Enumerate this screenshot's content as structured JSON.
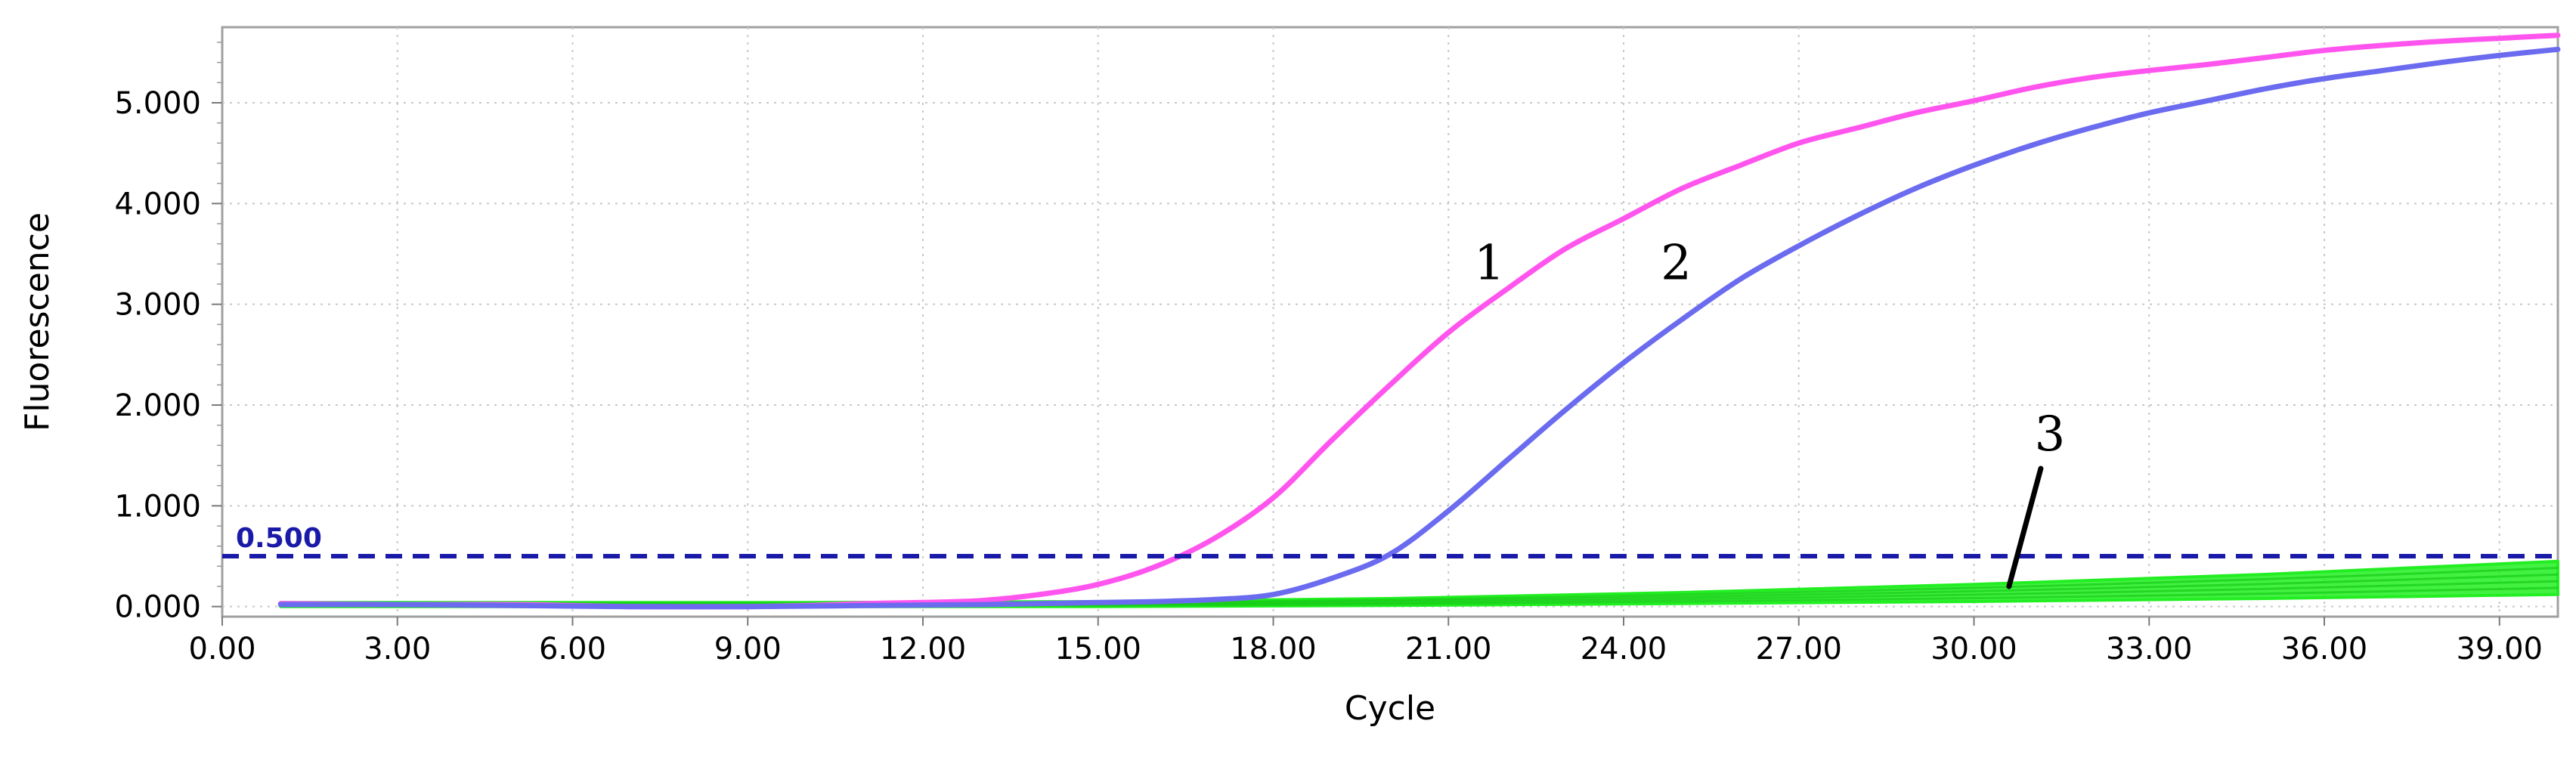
{
  "chart_data": {
    "type": "line",
    "xlabel": "Cycle",
    "ylabel": "Fluorescence",
    "xlim": [
      0,
      40
    ],
    "ylim": [
      -0.1,
      5.75
    ],
    "x_ticks": [
      "0.00",
      "3.00",
      "6.00",
      "9.00",
      "12.00",
      "15.00",
      "18.00",
      "21.00",
      "24.00",
      "27.00",
      "30.00",
      "33.00",
      "36.00",
      "39.00"
    ],
    "y_ticks": [
      "0.000",
      "1.000",
      "2.000",
      "3.000",
      "4.000",
      "5.000"
    ],
    "grid": true,
    "threshold": {
      "value": 0.5,
      "label": "0.500",
      "color": "#1a1aa8"
    },
    "series": [
      {
        "name": "1",
        "color": "#ff55ee",
        "x": [
          1,
          3,
          5,
          7,
          9,
          10,
          11,
          12,
          13,
          14,
          15,
          16,
          17,
          18,
          19,
          20,
          21,
          22,
          23,
          24,
          25,
          26,
          27,
          28,
          29,
          30,
          31,
          32,
          33,
          34,
          35,
          36,
          37,
          38,
          39,
          40
        ],
        "y": [
          0.03,
          0.02,
          0.02,
          0.0,
          0.0,
          0.01,
          0.03,
          0.04,
          0.06,
          0.12,
          0.22,
          0.4,
          0.68,
          1.08,
          1.65,
          2.2,
          2.72,
          3.15,
          3.55,
          3.85,
          4.15,
          4.38,
          4.6,
          4.75,
          4.9,
          5.02,
          5.15,
          5.25,
          5.32,
          5.38,
          5.45,
          5.52,
          5.57,
          5.61,
          5.64,
          5.67
        ]
      },
      {
        "name": "2",
        "color": "#6b6bf0",
        "x": [
          1,
          3,
          5,
          7,
          9,
          11,
          13,
          15,
          16,
          17,
          18,
          19,
          20,
          21,
          22,
          23,
          24,
          25,
          26,
          27,
          28,
          29,
          30,
          31,
          32,
          33,
          34,
          35,
          36,
          37,
          38,
          39,
          40
        ],
        "y": [
          0.02,
          0.02,
          0.01,
          0.0,
          0.0,
          0.01,
          0.02,
          0.04,
          0.05,
          0.07,
          0.12,
          0.28,
          0.52,
          0.95,
          1.45,
          1.95,
          2.42,
          2.85,
          3.25,
          3.58,
          3.88,
          4.15,
          4.38,
          4.58,
          4.75,
          4.9,
          5.02,
          5.14,
          5.24,
          5.32,
          5.4,
          5.47,
          5.53
        ]
      }
    ],
    "negative_series": {
      "name": "3",
      "color": "#22ee22",
      "x": [
        1,
        5,
        10,
        15,
        20,
        25,
        30,
        35,
        40
      ],
      "y_low": [
        0.0,
        0.0,
        0.0,
        0.0,
        0.01,
        0.03,
        0.05,
        0.08,
        0.12
      ],
      "y_high": [
        0.04,
        0.04,
        0.04,
        0.05,
        0.08,
        0.14,
        0.22,
        0.32,
        0.45
      ]
    },
    "annotations": [
      {
        "text": "1",
        "x": 21.7,
        "y": 3.25
      },
      {
        "text": "2",
        "x": 24.9,
        "y": 3.25
      },
      {
        "text": "3",
        "x": 31.3,
        "y": 1.55,
        "pointer_to": {
          "x": 30.6,
          "y": 0.2
        }
      }
    ]
  }
}
